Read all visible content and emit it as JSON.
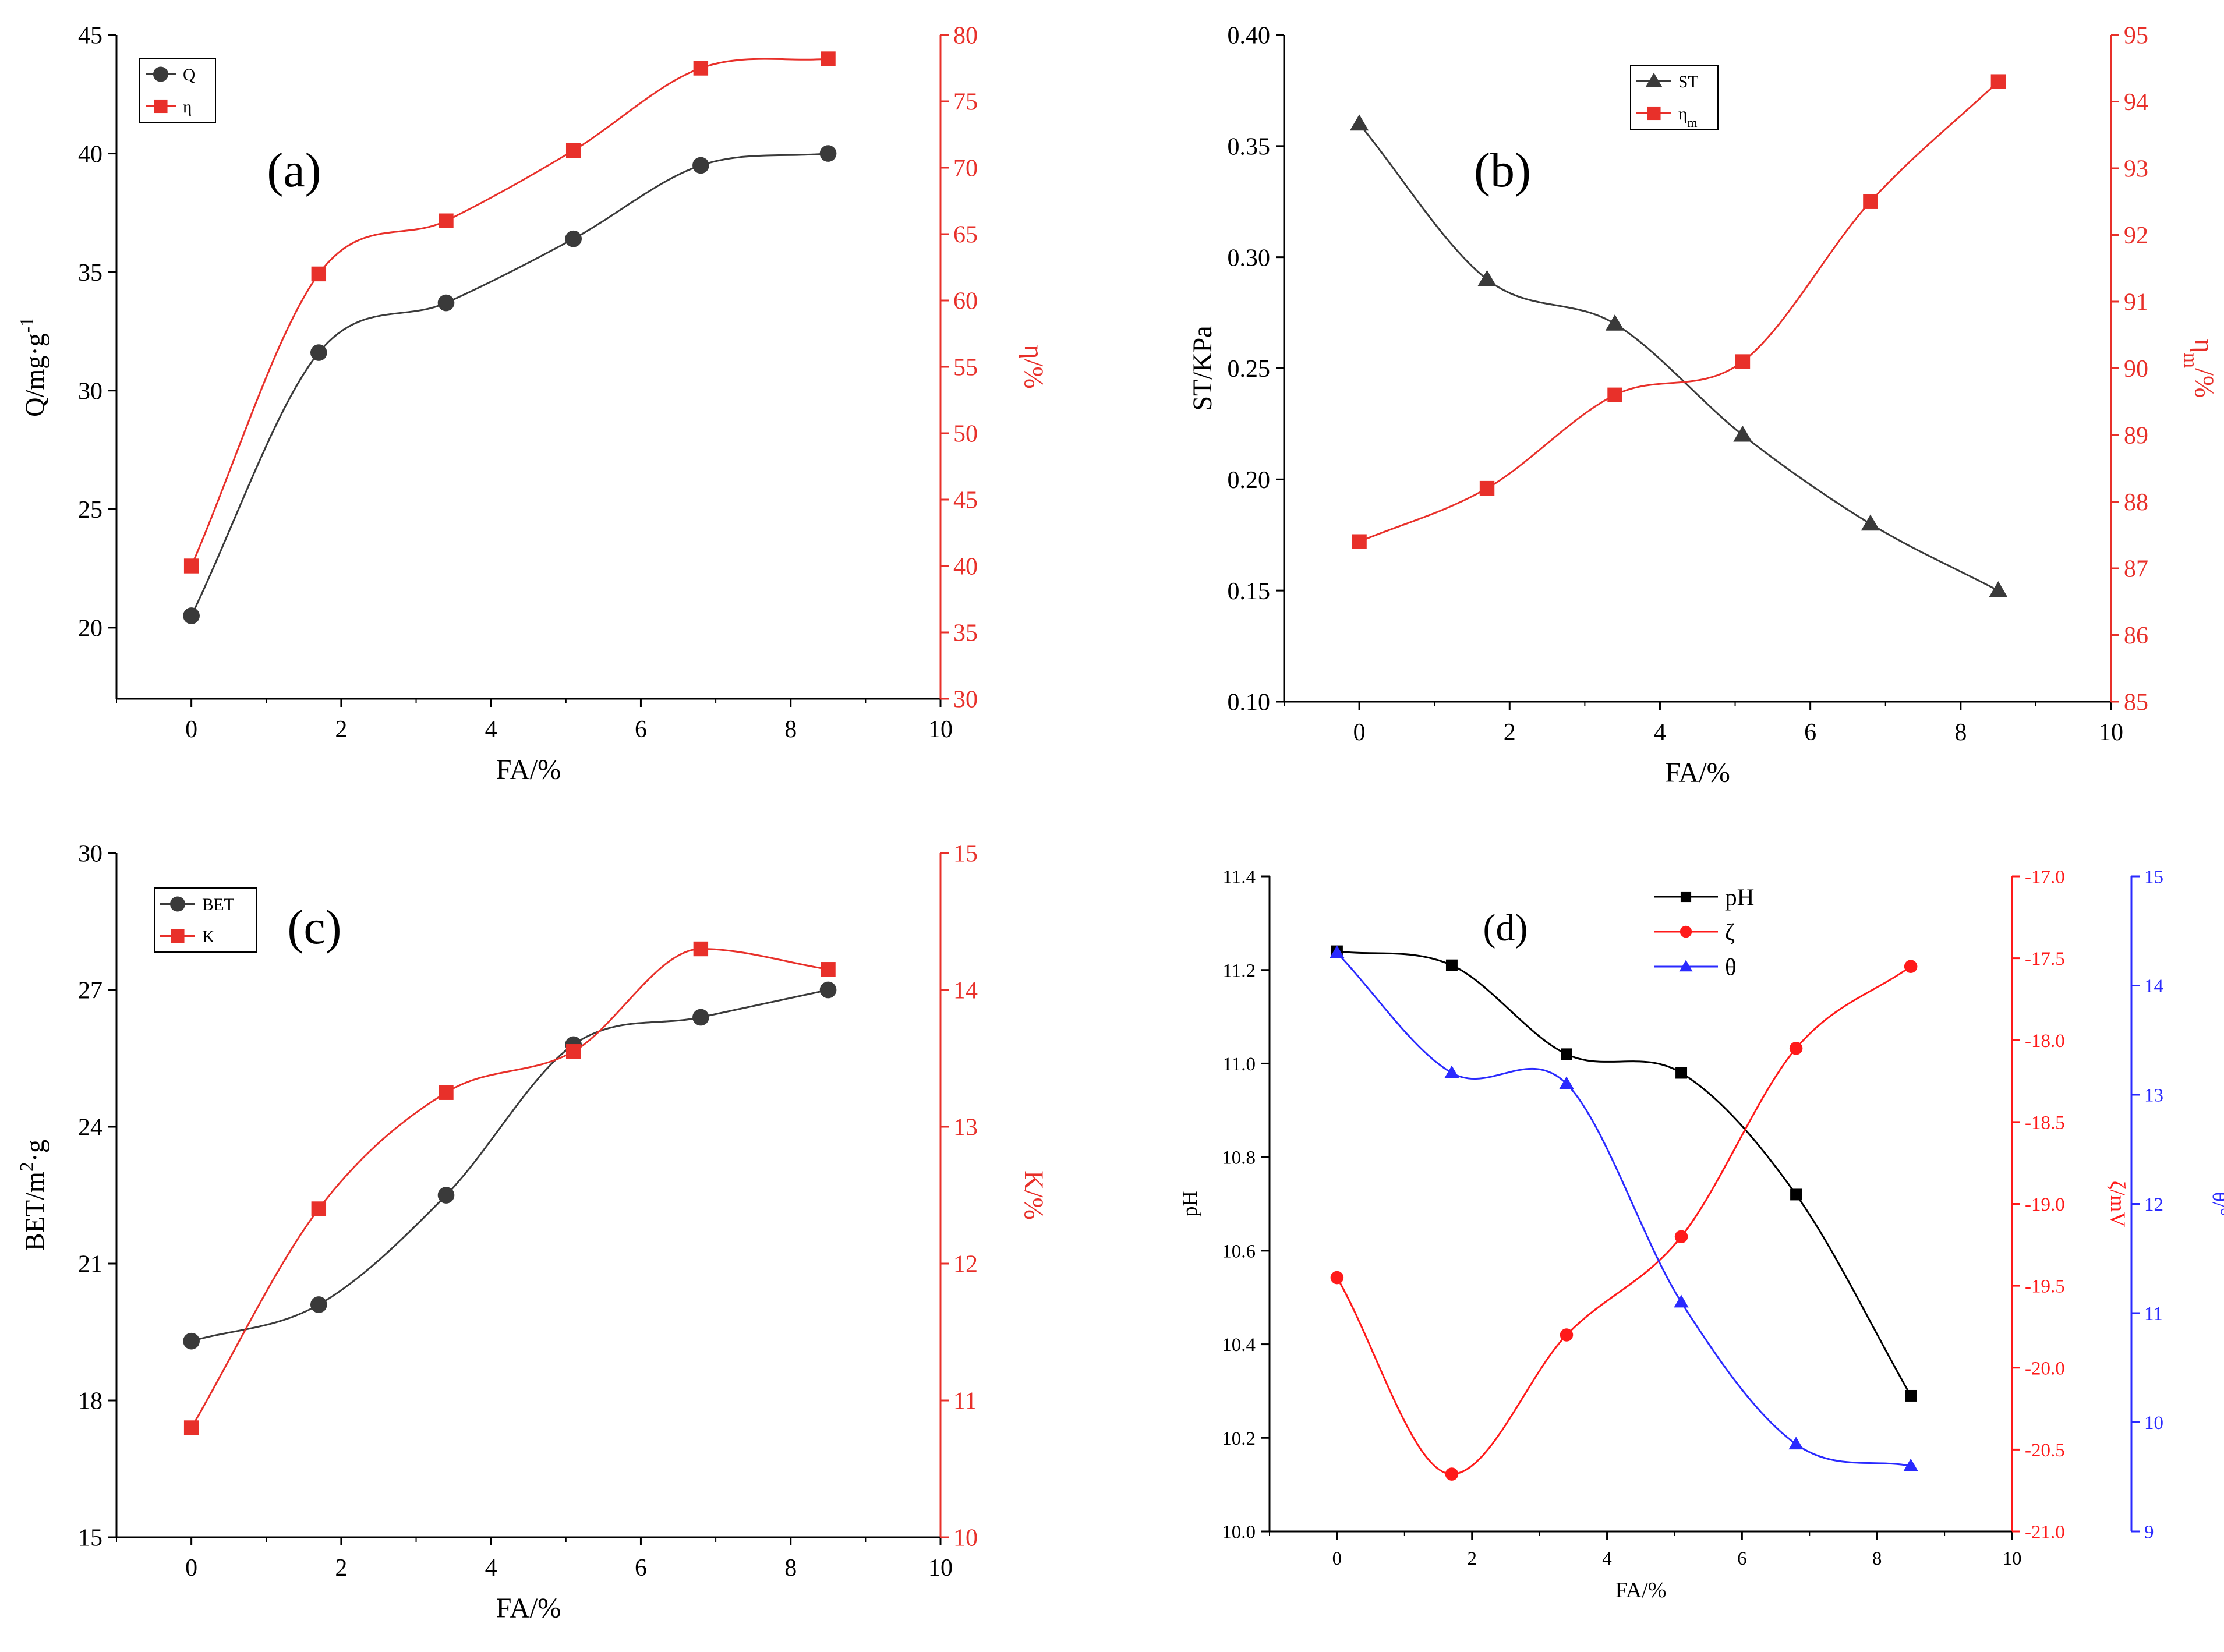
{
  "chart_data": [
    {
      "id": "a",
      "type": "line",
      "panel_label": "(a)",
      "xlabel": "FA/%",
      "xlim": [
        -1,
        10
      ],
      "xticks": [
        0,
        2,
        4,
        6,
        8,
        10
      ],
      "left_axis": {
        "label": "Q/mg·g",
        "superscript": "-1",
        "ylim": [
          17,
          45
        ],
        "ticks": [
          20,
          25,
          30,
          35,
          40,
          45
        ],
        "color": "#000000"
      },
      "right_axes": [
        {
          "label": "η/%",
          "ylim": [
            30,
            80
          ],
          "ticks": [
            30,
            35,
            40,
            45,
            50,
            55,
            60,
            65,
            70,
            75,
            80
          ],
          "color": "#e8302a"
        }
      ],
      "legend_position": "top-left",
      "series": [
        {
          "name": "Q",
          "axis": 0,
          "color": "#3a3a3a",
          "marker": "circle",
          "x": [
            0,
            1.7,
            3.4,
            5.1,
            6.8,
            8.5
          ],
          "values": [
            20.5,
            31.6,
            33.7,
            36.4,
            39.5,
            40.0
          ]
        },
        {
          "name": "η",
          "axis": 1,
          "color": "#e8302a",
          "marker": "square",
          "x": [
            0,
            1.7,
            3.4,
            5.1,
            6.8,
            8.5
          ],
          "values": [
            40.0,
            62.0,
            66.0,
            71.3,
            77.5,
            78.2
          ]
        }
      ]
    },
    {
      "id": "b",
      "type": "line",
      "panel_label": "(b)",
      "xlabel": "FA/%",
      "xlim": [
        -1,
        10
      ],
      "xticks": [
        0,
        2,
        4,
        6,
        8,
        10
      ],
      "left_axis": {
        "label": "ST/KPa",
        "ylim": [
          0.1,
          0.4
        ],
        "ticks": [
          "0.10",
          "0.15",
          "0.20",
          "0.25",
          "0.30",
          "0.35",
          "0.40"
        ],
        "color": "#000000"
      },
      "right_axes": [
        {
          "label": "η",
          "subscript": "m",
          "suffix": "/%",
          "ylim": [
            85,
            95
          ],
          "ticks": [
            85,
            86,
            87,
            88,
            89,
            90,
            91,
            92,
            93,
            94,
            95
          ],
          "color": "#e8302a"
        }
      ],
      "legend_position": "top-center",
      "series": [
        {
          "name": "ST",
          "axis": 0,
          "color": "#3a3a3a",
          "marker": "triangle",
          "x": [
            0,
            1.7,
            3.4,
            5.1,
            6.8,
            8.5
          ],
          "values": [
            0.36,
            0.29,
            0.27,
            0.22,
            0.18,
            0.15
          ]
        },
        {
          "name": "η",
          "subscript": "m",
          "axis": 1,
          "color": "#e8302a",
          "marker": "square",
          "x": [
            0,
            1.7,
            3.4,
            5.1,
            6.8,
            8.5
          ],
          "values": [
            87.4,
            88.2,
            89.6,
            90.1,
            92.5,
            94.3
          ]
        }
      ]
    },
    {
      "id": "c",
      "type": "line",
      "panel_label": "(c)",
      "xlabel": "FA/%",
      "xlim": [
        -1,
        10
      ],
      "xticks": [
        0,
        2,
        4,
        6,
        8,
        10
      ],
      "left_axis": {
        "label": "BET/m",
        "superscript": "2",
        "suffix": "·g",
        "ylim": [
          15,
          30
        ],
        "ticks": [
          15,
          18,
          21,
          24,
          27,
          30
        ],
        "color": "#000000"
      },
      "right_axes": [
        {
          "label": "K/%",
          "ylim": [
            10,
            15
          ],
          "ticks": [
            10,
            11,
            12,
            13,
            14,
            15
          ],
          "color": "#e8302a"
        }
      ],
      "legend_position": "top-left",
      "series": [
        {
          "name": "BET",
          "axis": 0,
          "color": "#3a3a3a",
          "marker": "circle",
          "x": [
            0,
            1.7,
            3.4,
            5.1,
            6.8,
            8.5
          ],
          "values": [
            19.3,
            20.1,
            22.5,
            25.8,
            26.4,
            27.0
          ]
        },
        {
          "name": "K",
          "axis": 1,
          "color": "#e8302a",
          "marker": "square",
          "x": [
            0,
            1.7,
            3.4,
            5.1,
            6.8,
            8.5
          ],
          "values": [
            10.8,
            12.4,
            13.25,
            13.55,
            14.3,
            14.15
          ]
        }
      ]
    },
    {
      "id": "d",
      "type": "line",
      "panel_label": "(d)",
      "xlabel": "FA/%",
      "xlim": [
        -1,
        10
      ],
      "xticks": [
        0,
        2,
        4,
        6,
        8,
        10
      ],
      "left_axis": {
        "label": "pH",
        "ylim": [
          10.0,
          11.4
        ],
        "ticks": [
          "10.0",
          "10.2",
          "10.4",
          "10.6",
          "10.8",
          "11.0",
          "11.2",
          "11.4"
        ],
        "color": "#000000"
      },
      "right_axes": [
        {
          "label": "ζ/mV",
          "ylim": [
            -21.0,
            -17.0
          ],
          "ticks": [
            "-21.0",
            "-20.5",
            "-20.0",
            "-19.5",
            "-19.0",
            "-18.5",
            "-18.0",
            "-17.5",
            "-17.0"
          ],
          "color": "#ff1a1a"
        },
        {
          "label": "θ/°",
          "ylim": [
            9,
            15
          ],
          "ticks": [
            9,
            10,
            11,
            12,
            13,
            14,
            15
          ],
          "color": "#2a2aff"
        }
      ],
      "legend_position": "top-center",
      "series": [
        {
          "name": "pH",
          "axis": 0,
          "color": "#000000",
          "marker": "square",
          "x": [
            0,
            1.7,
            3.4,
            5.1,
            6.8,
            8.5
          ],
          "values": [
            11.24,
            11.21,
            11.02,
            10.98,
            10.72,
            10.29
          ]
        },
        {
          "name": "ζ",
          "axis": 1,
          "color": "#ff1a1a",
          "marker": "circle",
          "x": [
            0,
            1.7,
            3.4,
            5.1,
            6.8,
            8.5
          ],
          "values": [
            -19.45,
            -20.65,
            -19.8,
            -19.2,
            -18.05,
            -17.55
          ]
        },
        {
          "name": "θ",
          "axis": 2,
          "color": "#2a2aff",
          "marker": "triangle",
          "x": [
            0,
            1.7,
            3.4,
            5.1,
            6.8,
            8.5
          ],
          "values": [
            14.3,
            13.2,
            13.1,
            11.1,
            9.8,
            9.6
          ]
        }
      ]
    }
  ]
}
